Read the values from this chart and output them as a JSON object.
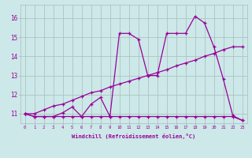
{
  "xlabel": "Windchill (Refroidissement éolien,°C)",
  "background_color": "#cce8e8",
  "line_color": "#990099",
  "grid_color": "#aabbbb",
  "x_ticks": [
    0,
    1,
    2,
    3,
    4,
    5,
    6,
    7,
    8,
    9,
    10,
    11,
    12,
    13,
    14,
    15,
    16,
    17,
    18,
    19,
    20,
    21,
    22,
    23
  ],
  "y_ticks": [
    11,
    12,
    13,
    14,
    15,
    16
  ],
  "xlim": [
    -0.5,
    23.5
  ],
  "ylim": [
    10.5,
    16.7
  ],
  "line1_x": [
    0,
    1,
    2,
    3,
    4,
    5,
    6,
    7,
    8,
    9,
    10,
    11,
    12,
    13,
    14,
    15,
    16,
    17,
    18,
    19,
    20,
    21,
    22,
    23
  ],
  "line1_y": [
    11.0,
    10.85,
    10.85,
    10.85,
    11.05,
    11.35,
    10.85,
    11.5,
    11.85,
    10.85,
    15.2,
    15.2,
    14.9,
    13.0,
    13.0,
    15.2,
    15.2,
    15.2,
    16.1,
    15.75,
    14.5,
    12.8,
    10.9,
    10.65
  ],
  "line2_x": [
    0,
    1,
    2,
    3,
    4,
    5,
    6,
    7,
    8,
    9,
    10,
    11,
    12,
    13,
    14,
    15,
    16,
    17,
    18,
    19,
    20,
    21,
    22,
    23
  ],
  "line2_y": [
    11.0,
    11.0,
    11.2,
    11.4,
    11.5,
    11.7,
    11.9,
    12.1,
    12.2,
    12.4,
    12.55,
    12.7,
    12.85,
    13.0,
    13.15,
    13.3,
    13.5,
    13.65,
    13.8,
    14.0,
    14.15,
    14.35,
    14.5,
    14.5
  ],
  "line3_x": [
    0,
    1,
    2,
    3,
    4,
    5,
    6,
    7,
    8,
    9,
    10,
    11,
    12,
    13,
    14,
    15,
    16,
    17,
    18,
    19,
    20,
    21,
    22,
    23
  ],
  "line3_y": [
    11.0,
    10.85,
    10.85,
    10.85,
    10.85,
    10.85,
    10.85,
    10.85,
    10.85,
    10.85,
    10.85,
    10.85,
    10.85,
    10.85,
    10.85,
    10.85,
    10.85,
    10.85,
    10.85,
    10.85,
    10.85,
    10.85,
    10.85,
    10.65
  ]
}
